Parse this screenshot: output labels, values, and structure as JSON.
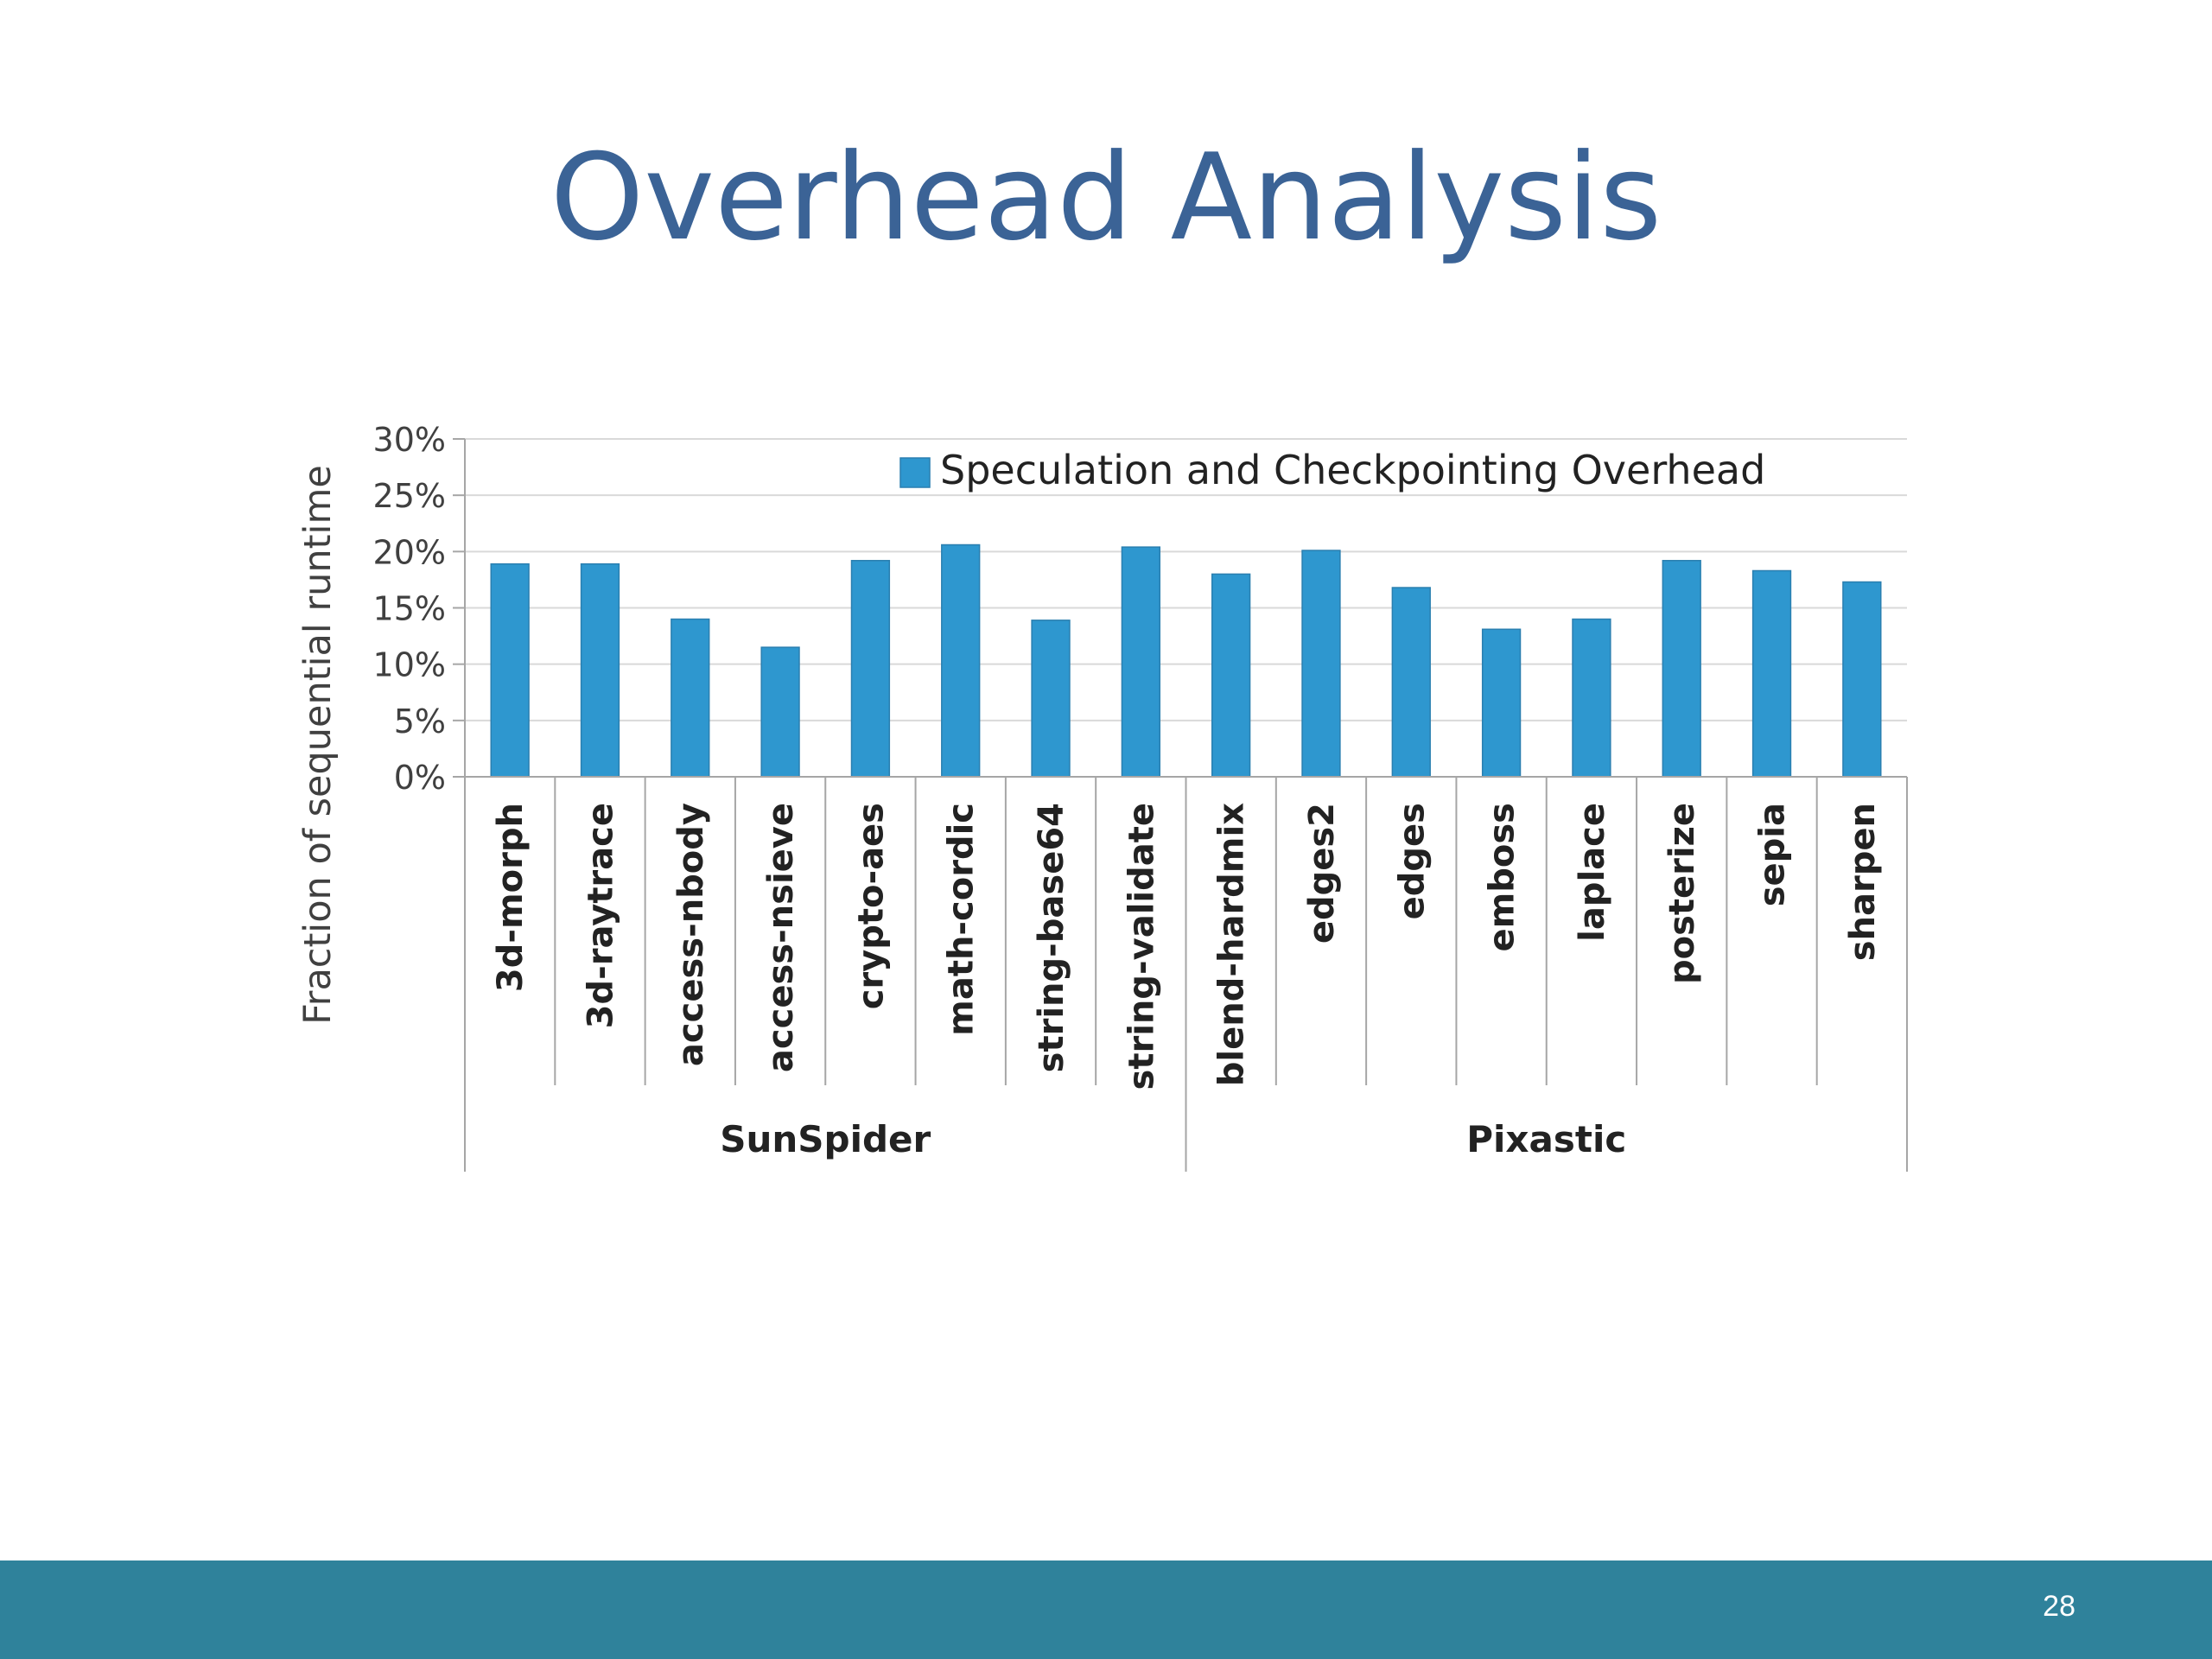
{
  "slide": {
    "title": "Overhead Analysis",
    "page_number": "28"
  },
  "colors": {
    "title": "#3b6396",
    "bar": "#2e97cf",
    "footer": "#2f829b"
  },
  "chart_data": {
    "type": "bar",
    "ylabel": "Fraction of sequential runtime",
    "ylim": [
      0,
      30
    ],
    "yticks": [
      0,
      5,
      10,
      15,
      20,
      25,
      30
    ],
    "ytick_labels": [
      "0%",
      "5%",
      "10%",
      "15%",
      "20%",
      "25%",
      "30%"
    ],
    "grid": true,
    "legend_position": "top-right",
    "categories": [
      "3d-morph",
      "3d-raytrace",
      "access-nbody",
      "access-nsieve",
      "crypto-aes",
      "math-cordic",
      "string-base64",
      "string-validate",
      "blend-hardmix",
      "edges2",
      "edges",
      "emboss",
      "laplace",
      "posterize",
      "sepia",
      "sharpen"
    ],
    "groups": [
      {
        "label": "SunSpider",
        "count": 8
      },
      {
        "label": "Pixastic",
        "count": 8
      }
    ],
    "series": [
      {
        "name": "Speculation and Checkpointing Overhead",
        "values": [
          18.9,
          18.9,
          14.0,
          11.5,
          19.2,
          20.6,
          13.9,
          20.4,
          18.0,
          20.1,
          16.8,
          13.1,
          14.0,
          19.2,
          18.3,
          17.3
        ]
      }
    ]
  }
}
